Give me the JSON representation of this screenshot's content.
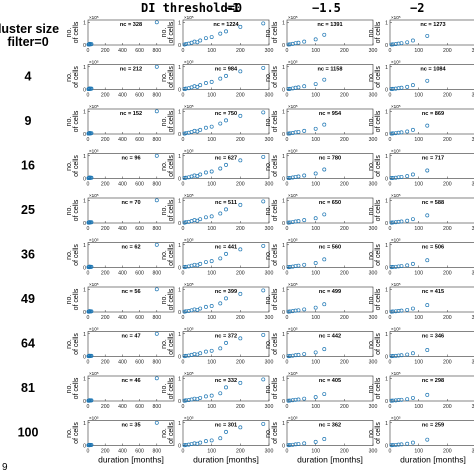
{
  "header": {
    "di_threshold_label": "DI threshold=0",
    "col_labels": [
      "DI threshold=0",
      "−1",
      "−1.5",
      "−2"
    ],
    "cluster_size_label_line1": "Cluster size",
    "cluster_size_label_line2": "filter=0"
  },
  "row_labels": [
    "0",
    "4",
    "9",
    "16",
    "25",
    "36",
    "49",
    "64",
    "81",
    "100"
  ],
  "corner_text": "9",
  "chart_data": {
    "type": "scatter",
    "layout": "grid 10 rows x 4 columns of small scatter plots",
    "xlabel": "duration [months]",
    "ylabel": "no. of cells",
    "y_exponent": "×10⁵",
    "col_x": [
      {
        "xlim": [
          0,
          1000
        ],
        "xticks": [
          "0",
          "200",
          "400",
          "600",
          "800"
        ]
      },
      {
        "xlim": [
          0,
          300
        ],
        "xticks": [
          "0",
          "100",
          "200",
          "300"
        ]
      },
      {
        "xlim": [
          0,
          300
        ],
        "xticks": [
          "0",
          "100",
          "200",
          "300"
        ]
      },
      {
        "xlim": [
          0,
          300
        ],
        "xticks": [
          "0",
          "100",
          "200",
          "300"
        ]
      }
    ],
    "yticks": [
      "0",
      "1"
    ],
    "ylim": [
      0,
      1.1
    ],
    "nc": [
      [
        "nc = 328",
        "nc = 1224",
        "nc = 1391",
        "nc = 1273"
      ],
      [
        "nc = 212",
        "nc = 984",
        "nc = 1158",
        "nc = 1084"
      ],
      [
        "nc = 152",
        "nc = 750",
        "nc = 954",
        "nc = 869"
      ],
      [
        "nc = 96",
        "nc = 627",
        "nc = 780",
        "nc = 717"
      ],
      [
        "nc = 70",
        "nc = 511",
        "nc = 650",
        "nc = 588"
      ],
      [
        "nc = 62",
        "nc = 441",
        "nc = 560",
        "nc = 506"
      ],
      [
        "nc = 56",
        "nc = 399",
        "nc = 499",
        "nc = 415"
      ],
      [
        "nc = 47",
        "nc = 372",
        "nc = 442",
        "nc = 346"
      ],
      [
        "nc = 46",
        "nc = 332",
        "nc = 405",
        "nc = 298"
      ],
      [
        "nc = 35",
        "nc = 301",
        "nc = 362",
        "nc = 259"
      ]
    ],
    "series": {
      "col0": [
        [
          5,
          0.02
        ],
        [
          10,
          0.03
        ],
        [
          15,
          0.02
        ],
        [
          20,
          0.05
        ],
        [
          30,
          0.03
        ],
        [
          40,
          0.04
        ],
        [
          800,
          1.0
        ]
      ],
      "col1": [
        [
          5,
          0.02
        ],
        [
          10,
          0.04
        ],
        [
          20,
          0.06
        ],
        [
          30,
          0.1
        ],
        [
          40,
          0.15
        ],
        [
          50,
          0.12
        ],
        [
          60,
          0.2
        ],
        [
          80,
          0.3
        ],
        [
          100,
          0.35
        ],
        [
          130,
          0.5
        ],
        [
          150,
          0.6
        ],
        [
          200,
          0.8
        ],
        [
          280,
          0.95
        ]
      ],
      "col2": [
        [
          5,
          0.02
        ],
        [
          10,
          0.03
        ],
        [
          20,
          0.05
        ],
        [
          30,
          0.08
        ],
        [
          40,
          0.1
        ],
        [
          60,
          0.15
        ],
        [
          100,
          0.25
        ],
        [
          130,
          0.45
        ]
      ],
      "col3": [
        [
          5,
          0.02
        ],
        [
          10,
          0.03
        ],
        [
          20,
          0.04
        ],
        [
          30,
          0.06
        ],
        [
          40,
          0.08
        ],
        [
          60,
          0.12
        ],
        [
          80,
          0.2
        ],
        [
          130,
          0.4
        ]
      ]
    }
  }
}
